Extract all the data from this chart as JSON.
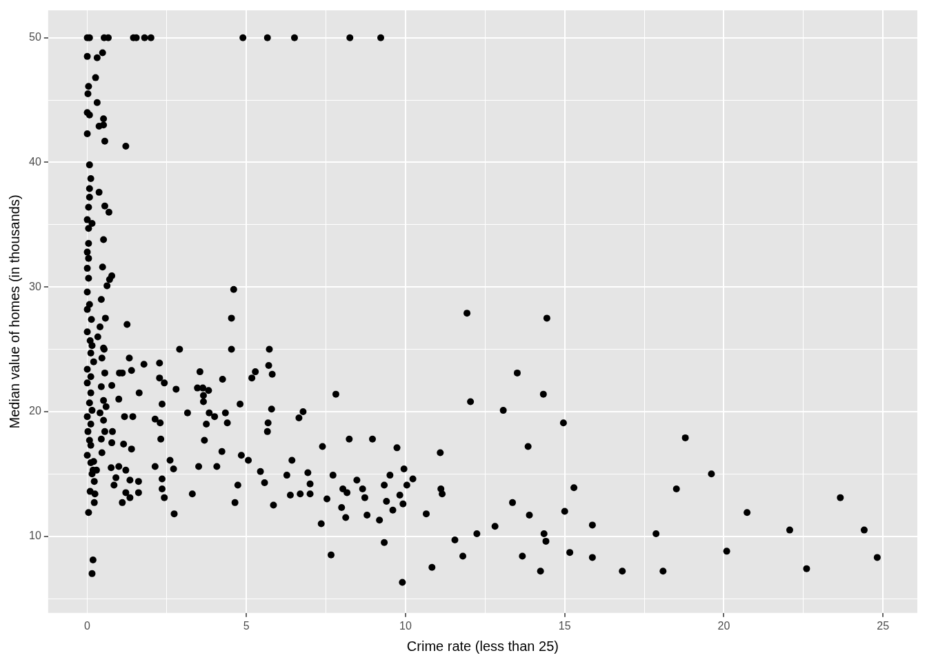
{
  "chart_data": {
    "type": "scatter",
    "xlabel": "Crime rate (less than 25)",
    "ylabel": "Median value of homes (in thousands)",
    "xlim": [
      -1.23,
      26.08
    ],
    "ylim": [
      3.85,
      52.2
    ],
    "xticks": [
      0,
      {
        "value": 2.5,
        "label": null
      },
      5,
      {
        "value": 7.5,
        "label": null
      },
      10,
      {
        "value": 12.5,
        "label": null
      },
      15,
      {
        "value": 17.5,
        "label": null
      },
      20,
      {
        "value": 22.5,
        "label": null
      },
      25
    ],
    "yticks": [
      {
        "value": 5,
        "label": null
      },
      10,
      {
        "value": 15,
        "label": null
      },
      20,
      {
        "value": 25,
        "label": null
      },
      30,
      {
        "value": 35,
        "label": null
      },
      40,
      {
        "value": 45,
        "label": null
      },
      50
    ],
    "grid": true,
    "legend": false,
    "marker": "circle",
    "series": [
      {
        "color": "#000000",
        "x": [
          4.89,
          5.66,
          6.51,
          8.25,
          9.22,
          4.6,
          4.53,
          4.53,
          5.72,
          2.9,
          2.27,
          2.27,
          2.42,
          1.78,
          1.32,
          1.39,
          1.1,
          1.63,
          11.93,
          14.44,
          13.51,
          12.04,
          13.07,
          14.33,
          14.96,
          13.85,
          18.79,
          19.61,
          18.51,
          15.29,
          20.73,
          23.66,
          22.07,
          24.41,
          24.82,
          22.6,
          20.09,
          17.87,
          18.09,
          16.81,
          15.87,
          15.16,
          15.0,
          15.87,
          14.35,
          14.41,
          14.24,
          13.67,
          13.89,
          13.36,
          12.81,
          12.24,
          11.55,
          11.8,
          10.83,
          9.9,
          10.65,
          11.09,
          11.11,
          11.15,
          10.23,
          10.04,
          9.95,
          9.73,
          9.92,
          9.82,
          9.6,
          9.4,
          9.51,
          9.33,
          9.33,
          9.18,
          8.96,
          8.79,
          8.72,
          8.65,
          8.47,
          8.23,
          8.16,
          8.12,
          7.99,
          8.03,
          7.72,
          7.66,
          7.53,
          7.39,
          7.35,
          7.81,
          7.0,
          7.0,
          6.93,
          6.78,
          6.65,
          6.69,
          6.43,
          6.38,
          6.27,
          5.85,
          5.79,
          5.81,
          5.7,
          5.68,
          5.66,
          5.57,
          5.44,
          5.06,
          5.28,
          5.17,
          4.84,
          4.8,
          4.73,
          4.64,
          4.4,
          4.34,
          4.25,
          4.23,
          4.07,
          4.0,
          3.83,
          3.81,
          3.74,
          3.68,
          3.65,
          3.65,
          3.63,
          3.54,
          3.46,
          3.5,
          3.3,
          3.15,
          2.79,
          2.73,
          2.71,
          2.6,
          2.42,
          2.35,
          2.35,
          2.31,
          2.35,
          2.29,
          2.13,
          2.13,
          1.61,
          1.61,
          1.43,
          1.39,
          1.34,
          1.34,
          1.21,
          1.17,
          1.21,
          1.14,
          1.1,
          1.25,
          1.21,
          0.99,
          1.01,
          0.99,
          0.9,
          0.84,
          0.75,
          0.77,
          0.79,
          0.77,
          0.77,
          0.7,
          0.62,
          0.57,
          0.68,
          0.55,
          0.51,
          0.48,
          0.37,
          0.51,
          0.51,
          0.55,
          0.48,
          0.26,
          0.31,
          0.31,
          0.37,
          0.44,
          0.4,
          0.53,
          0.18,
          0.15,
          0.04,
          0.22,
          0.24,
          0.22,
          0.15,
          0.2,
          0.09,
          0,
          0.07,
          0.53,
          0.66,
          1.45,
          1.54,
          1.8,
          2.0,
          0,
          0.04,
          0.02,
          0,
          0.07,
          0,
          0.07,
          0.11,
          0.07,
          0.07,
          0.04,
          0.15,
          0,
          0.04,
          0.04,
          0,
          0.04,
          0,
          0.04,
          0,
          0.07,
          0,
          0.13,
          0,
          0.09,
          0.15,
          0.11,
          0.2,
          0,
          0.11,
          0,
          0.11,
          0.07,
          0.15,
          0,
          0.11,
          0.02,
          0.07,
          0.11,
          0,
          0.11,
          0.18,
          0.33,
          0.51,
          0.46,
          0.55,
          0.44,
          0.51,
          0.59,
          0.4,
          0.51,
          0.55,
          0.44,
          0.46,
          0.29
        ],
        "values": [
          50,
          50,
          50,
          50,
          50,
          29.8,
          27.5,
          25.0,
          25.0,
          25.0,
          23.9,
          22.7,
          22.3,
          23.8,
          24.3,
          23.3,
          23.1,
          21.5,
          27.9,
          27.5,
          23.1,
          20.8,
          20.1,
          21.4,
          19.1,
          17.2,
          17.9,
          15.0,
          13.8,
          13.9,
          11.9,
          13.1,
          10.5,
          10.5,
          8.3,
          7.4,
          8.8,
          10.2,
          7.2,
          7.2,
          8.3,
          8.7,
          12.0,
          10.9,
          10.2,
          9.6,
          7.2,
          8.4,
          11.7,
          12.7,
          10.8,
          10.2,
          9.7,
          8.4,
          7.5,
          6.3,
          11.8,
          16.7,
          13.8,
          13.4,
          14.6,
          14.1,
          15.4,
          17.1,
          12.6,
          13.3,
          12.1,
          12.8,
          14.9,
          14.1,
          9.5,
          11.3,
          17.8,
          11.7,
          13.1,
          13.8,
          14.5,
          17.8,
          13.5,
          11.5,
          12.3,
          13.8,
          14.9,
          8.5,
          13.0,
          17.2,
          11.0,
          21.4,
          14.2,
          13.4,
          15.1,
          20.0,
          19.5,
          13.4,
          16.1,
          13.3,
          14.9,
          12.5,
          20.2,
          23.0,
          23.7,
          19.1,
          18.4,
          14.3,
          15.2,
          16.1,
          23.2,
          22.7,
          16.5,
          20.6,
          14.1,
          12.7,
          19.1,
          19.9,
          22.6,
          16.8,
          15.6,
          19.6,
          19.9,
          21.7,
          19.0,
          17.7,
          21.3,
          20.8,
          21.9,
          23.2,
          21.9,
          15.6,
          13.4,
          19.9,
          21.8,
          11.8,
          15.4,
          16.1,
          13.1,
          14.6,
          13.8,
          17.8,
          20.6,
          19.1,
          19.4,
          15.6,
          14.4,
          13.5,
          19.6,
          17.0,
          14.5,
          13.1,
          13.5,
          19.6,
          15.3,
          17.4,
          12.7,
          27.0,
          41.3,
          21.0,
          23.1,
          15.6,
          14.7,
          14.1,
          15.5,
          17.5,
          18.4,
          22.1,
          30.9,
          30.6,
          30.1,
          27.5,
          36.0,
          36.5,
          33.8,
          31.6,
          37.6,
          43.5,
          43.0,
          41.7,
          48.8,
          46.8,
          48.4,
          44.8,
          42.9,
          29.0,
          26.8,
          25.0,
          8.1,
          7.0,
          11.9,
          12.7,
          13.4,
          14.4,
          15.0,
          16.0,
          13.6,
          50,
          50,
          50,
          50,
          50,
          50,
          50,
          50,
          48.5,
          46.1,
          45.5,
          44.0,
          43.8,
          42.3,
          39.8,
          38.7,
          37.9,
          37.2,
          36.4,
          35.1,
          35.4,
          34.7,
          33.5,
          32.8,
          32.3,
          31.5,
          30.7,
          29.6,
          28.6,
          28.2,
          27.4,
          26.4,
          25.7,
          25.3,
          24.7,
          24.0,
          23.4,
          22.8,
          22.3,
          21.5,
          20.7,
          20.1,
          19.6,
          19.0,
          18.4,
          17.7,
          17.3,
          16.5,
          15.9,
          15.3,
          26.0,
          25.1,
          24.3,
          23.1,
          22.0,
          20.9,
          20.4,
          19.9,
          19.3,
          18.4,
          17.8,
          16.7,
          15.3
        ]
      }
    ]
  }
}
